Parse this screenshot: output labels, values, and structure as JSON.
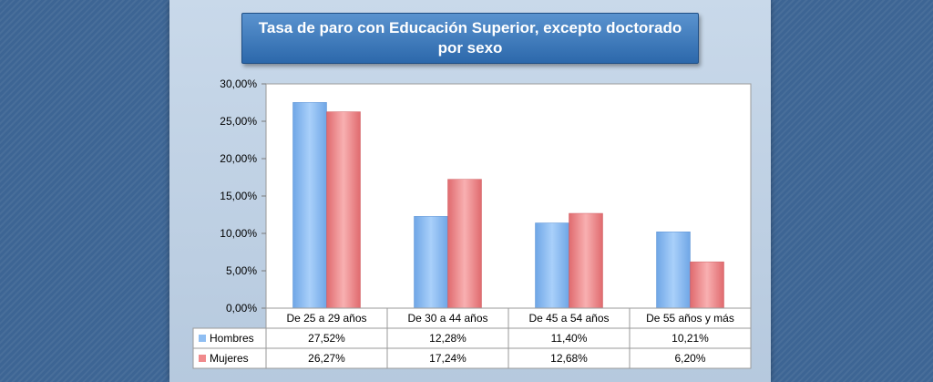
{
  "chart_data": {
    "type": "bar",
    "title": "Tasa de paro con Educación Superior, excepto doctorado por sexo",
    "categories": [
      "De 25 a 29 años",
      "De 30 a 44 años",
      "De 45 a 54 años",
      "De 55 años y más"
    ],
    "series": [
      {
        "name": "Hombres",
        "values": [
          27.52,
          12.28,
          11.4,
          10.21
        ],
        "labels": [
          "27,52%",
          "12,28%",
          "11,40%",
          "10,21%"
        ],
        "color": "#8fbef2"
      },
      {
        "name": "Mujeres",
        "values": [
          26.27,
          17.24,
          12.68,
          6.2
        ],
        "labels": [
          "26,27%",
          "17,24%",
          "12,68%",
          "6,20%"
        ],
        "color": "#f08a8c"
      }
    ],
    "ylim": [
      0,
      30
    ],
    "yticks": [
      0,
      5,
      10,
      15,
      20,
      25,
      30
    ],
    "ytick_labels": [
      "0,00%",
      "5,00%",
      "10,00%",
      "15,00%",
      "20,00%",
      "25,00%",
      "30,00%"
    ],
    "legend": "data-table",
    "grid": false
  }
}
